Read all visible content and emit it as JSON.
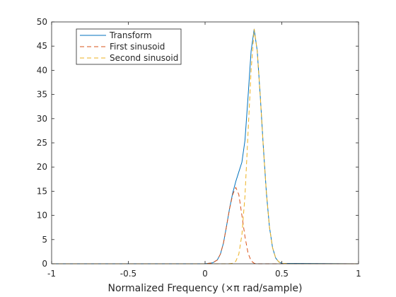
{
  "chart_data": {
    "type": "line",
    "title": "",
    "xlabel": "Normalized Frequency (×π rad/sample)",
    "ylabel": "",
    "xlim": [
      -1,
      1
    ],
    "ylim": [
      0,
      50
    ],
    "xticks": [
      -1,
      -0.5,
      0,
      0.5,
      1
    ],
    "xtick_labels": [
      "-1",
      "-0.5",
      "0",
      "0.5",
      "1"
    ],
    "yticks": [
      0,
      5,
      10,
      15,
      20,
      25,
      30,
      35,
      40,
      45,
      50
    ],
    "ytick_labels": [
      "0",
      "5",
      "10",
      "15",
      "20",
      "25",
      "30",
      "35",
      "40",
      "45",
      "50"
    ],
    "grid": false,
    "legend_position": "top-left",
    "series": [
      {
        "name": "Transform",
        "color": "#0072BD",
        "style": "solid",
        "x": [
          -1,
          -0.5,
          0,
          0.05,
          0.08,
          0.1,
          0.12,
          0.14,
          0.16,
          0.18,
          0.2,
          0.22,
          0.24,
          0.26,
          0.28,
          0.3,
          0.32,
          0.34,
          0.36,
          0.38,
          0.4,
          0.42,
          0.44,
          0.46,
          0.48,
          0.5,
          1
        ],
        "y": [
          0,
          0,
          0,
          0.2,
          0.8,
          2.0,
          4.3,
          7.8,
          11.5,
          14.6,
          17.0,
          19.0,
          21.0,
          25.5,
          34.5,
          44.0,
          48.5,
          44.0,
          34.5,
          24.0,
          14.5,
          7.5,
          3.3,
          1.2,
          0.4,
          0.1,
          0
        ]
      },
      {
        "name": "First sinusoid",
        "color": "#D95319",
        "style": "dashed",
        "x": [
          -1,
          -0.5,
          0,
          0.05,
          0.08,
          0.1,
          0.12,
          0.14,
          0.16,
          0.18,
          0.2,
          0.22,
          0.24,
          0.26,
          0.28,
          0.3,
          0.32,
          0.34,
          0.36,
          0.4,
          0.5,
          1
        ],
        "y": [
          0,
          0,
          0,
          0.2,
          0.8,
          2.0,
          4.3,
          7.8,
          11.4,
          14.3,
          15.8,
          14.3,
          10.0,
          5.6,
          2.2,
          0.6,
          0.1,
          0,
          0,
          0,
          0,
          0
        ]
      },
      {
        "name": "Second sinusoid",
        "color": "#EDB120",
        "style": "dashed",
        "x": [
          -1,
          -0.5,
          0,
          0.1,
          0.15,
          0.18,
          0.2,
          0.22,
          0.24,
          0.26,
          0.28,
          0.3,
          0.32,
          0.34,
          0.36,
          0.38,
          0.4,
          0.42,
          0.44,
          0.46,
          0.48,
          0.5,
          0.55,
          1
        ],
        "y": [
          0,
          0,
          0,
          0,
          0,
          0.1,
          0.5,
          2.0,
          6.0,
          14.0,
          27.0,
          40.0,
          48.5,
          44.0,
          34.5,
          24.0,
          14.5,
          7.5,
          3.3,
          1.2,
          0.4,
          0.1,
          0,
          0
        ]
      }
    ]
  }
}
